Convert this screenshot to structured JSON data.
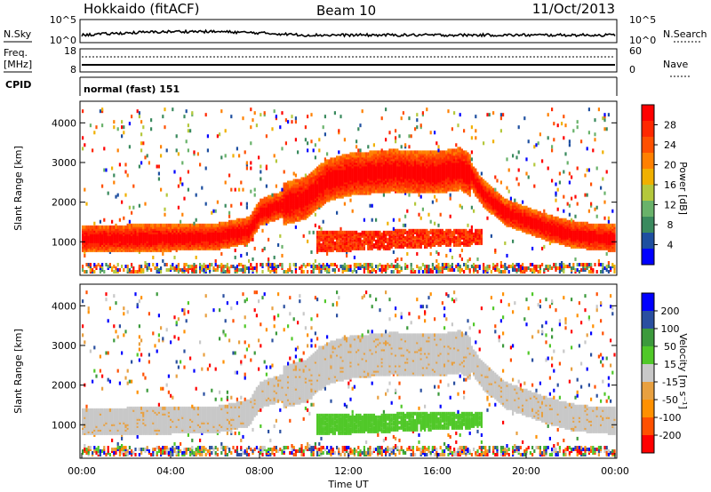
{
  "header": {
    "title": "Hokkaido (fitACF)",
    "beam": "Beam 10",
    "date": "11/Oct/2013"
  },
  "top_panels": {
    "nsky_label": "N.Sky",
    "nsearch_label": "N.Search",
    "noise_ticks": [
      "10^5",
      "10^0"
    ],
    "freq_label_1": "Freq.",
    "freq_label_2": "[MHz]",
    "freq_ticks": [
      "18",
      "8"
    ],
    "nave_label": "Nave",
    "nave_ticks": [
      "60",
      "0"
    ],
    "cpid_label": "CPID",
    "cpid_value": "normal (fast) 151"
  },
  "colors": {
    "power_scale": [
      "#0000ff",
      "#1e4fa0",
      "#3a8a5e",
      "#69b26a",
      "#b4c83c",
      "#f0b000",
      "#ff8000",
      "#ff5000",
      "#ff2800",
      "#ff0000"
    ],
    "velocity_scale": [
      "#ff0000",
      "#ff5000",
      "#ff9000",
      "#e8a040",
      "#c8c8c8",
      "#50c828",
      "#3c9a3c",
      "#2a4fa0",
      "#0000ff"
    ]
  },
  "chart_data": [
    {
      "type": "heatmap",
      "panel": "power",
      "ylabel": "Slant Range [km]",
      "ylim": [
        200,
        4500
      ],
      "y_ticks": [
        "1000",
        "2000",
        "3000",
        "4000"
      ],
      "colorbar": {
        "label": "Power [dB]",
        "ticks": [
          "4",
          "8",
          "12",
          "16",
          "20",
          "24",
          "28"
        ],
        "range": [
          0,
          32
        ]
      },
      "echo_bands": [
        {
          "x": [
            0,
            2,
            4,
            6,
            7.5,
            8,
            9,
            10,
            11,
            12,
            13,
            14,
            15,
            16,
            17,
            17.5,
            18,
            19,
            20,
            21,
            22,
            23,
            24
          ],
          "y": [
            1050,
            1050,
            1060,
            1080,
            1250,
            1700,
            1900,
            2050,
            2500,
            2650,
            2700,
            2750,
            2700,
            2700,
            2800,
            2600,
            2200,
            1700,
            1500,
            1300,
            1150,
            1080,
            1050
          ]
        }
      ]
    },
    {
      "type": "heatmap",
      "panel": "velocity",
      "xlabel": "Time UT",
      "ylabel": "Slant Range [km]",
      "ylim": [
        200,
        4500
      ],
      "y_ticks": [
        "1000",
        "2000",
        "3000",
        "4000"
      ],
      "x_ticks": [
        "00:00",
        "04:00",
        "08:00",
        "12:00",
        "16:00",
        "20:00",
        "00:00"
      ],
      "colorbar": {
        "label": "Velocity [m s⁻¹]",
        "ticks": [
          "200",
          "100",
          "50",
          "15",
          "-15",
          "-50",
          "-100",
          "-200"
        ],
        "range": [
          -250,
          250
        ]
      }
    }
  ]
}
